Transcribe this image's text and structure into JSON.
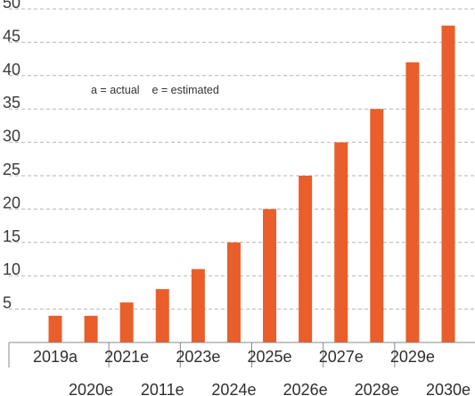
{
  "chart_data": {
    "type": "bar",
    "categories": [
      "2019a",
      "2020e",
      "2021e",
      "2011e",
      "2023e",
      "2024e",
      "2025e",
      "2026e",
      "2027e",
      "2028e",
      "2029e",
      "2030e"
    ],
    "values": [
      4,
      4,
      6,
      8,
      11,
      15,
      20,
      25,
      30,
      35,
      42,
      47.5
    ],
    "ylim": [
      0,
      50
    ],
    "yticks": [
      5,
      10,
      15,
      20,
      25,
      30,
      35,
      40,
      45,
      50
    ],
    "grid": true,
    "annotation": "a = actual    e = estimated",
    "colors": {
      "bar": "#e95e2a",
      "grid": "#b5b5b5",
      "axis": "#888888"
    }
  }
}
